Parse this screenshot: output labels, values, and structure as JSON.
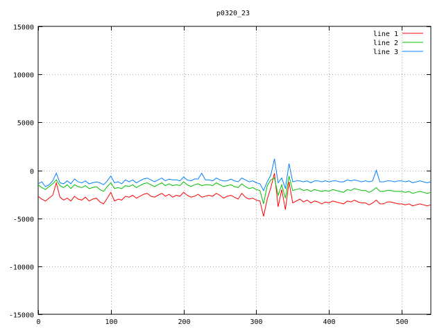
{
  "chart_data": {
    "type": "line",
    "title": "p0320_23",
    "xlabel": "",
    "ylabel": "",
    "xlim": [
      0,
      540
    ],
    "ylim": [
      -15000,
      15000
    ],
    "xticks": [
      0,
      100,
      200,
      300,
      400,
      500
    ],
    "yticks": [
      -15000,
      -10000,
      -5000,
      0,
      5000,
      10000,
      15000
    ],
    "grid": true,
    "legend": "top-right",
    "series": [
      {
        "name": "line 1",
        "color": "#ff0000",
        "x": [
          0,
          5,
          10,
          15,
          20,
          25,
          30,
          35,
          40,
          45,
          50,
          55,
          60,
          65,
          70,
          75,
          80,
          85,
          90,
          95,
          100,
          105,
          110,
          115,
          120,
          125,
          130,
          135,
          140,
          145,
          150,
          155,
          160,
          165,
          170,
          175,
          180,
          185,
          190,
          195,
          200,
          205,
          210,
          215,
          220,
          225,
          230,
          235,
          240,
          245,
          250,
          255,
          260,
          265,
          270,
          275,
          280,
          285,
          290,
          295,
          300,
          305,
          310,
          315,
          320,
          325,
          330,
          335,
          340,
          345,
          350,
          355,
          360,
          365,
          370,
          375,
          380,
          385,
          390,
          395,
          400,
          405,
          410,
          415,
          420,
          425,
          430,
          435,
          440,
          445,
          450,
          455,
          460,
          465,
          470,
          475,
          480,
          485,
          490,
          495,
          500,
          505,
          510,
          515,
          520,
          525,
          530,
          535,
          540
        ],
        "y": [
          -2700,
          -3000,
          -3200,
          -2900,
          -2600,
          -1300,
          -2800,
          -3100,
          -2900,
          -3200,
          -2700,
          -3000,
          -3100,
          -2800,
          -3200,
          -3000,
          -2900,
          -3300,
          -3500,
          -2900,
          -2300,
          -3200,
          -3000,
          -3100,
          -2700,
          -2800,
          -2600,
          -2900,
          -2700,
          -2500,
          -2400,
          -2700,
          -2800,
          -2600,
          -2400,
          -2700,
          -2500,
          -2800,
          -2600,
          -2700,
          -2300,
          -2600,
          -2800,
          -2700,
          -2500,
          -2800,
          -2700,
          -2600,
          -2700,
          -2400,
          -2600,
          -2900,
          -2700,
          -2600,
          -2800,
          -3000,
          -2400,
          -2800,
          -3000,
          -2900,
          -3100,
          -3200,
          -4800,
          -3000,
          -1800,
          -300,
          -3800,
          -2000,
          -4100,
          -1200,
          -3400,
          -3200,
          -3000,
          -3300,
          -3100,
          -3400,
          -3200,
          -3300,
          -3500,
          -3300,
          -3400,
          -3200,
          -3300,
          -3400,
          -3500,
          -3200,
          -3300,
          -3100,
          -3300,
          -3400,
          -3400,
          -3600,
          -3400,
          -3100,
          -3500,
          -3500,
          -3300,
          -3300,
          -3400,
          -3500,
          -3500,
          -3600,
          -3500,
          -3700,
          -3600,
          -3500,
          -3600,
          -3700,
          -3600
        ]
      },
      {
        "name": "line 2",
        "color": "#00c000",
        "x": [
          0,
          5,
          10,
          15,
          20,
          25,
          30,
          35,
          40,
          45,
          50,
          55,
          60,
          65,
          70,
          75,
          80,
          85,
          90,
          95,
          100,
          105,
          110,
          115,
          120,
          125,
          130,
          135,
          140,
          145,
          150,
          155,
          160,
          165,
          170,
          175,
          180,
          185,
          190,
          195,
          200,
          205,
          210,
          215,
          220,
          225,
          230,
          235,
          240,
          245,
          250,
          255,
          260,
          265,
          270,
          275,
          280,
          285,
          290,
          295,
          300,
          305,
          310,
          315,
          320,
          325,
          330,
          335,
          340,
          345,
          350,
          355,
          360,
          365,
          370,
          375,
          380,
          385,
          390,
          395,
          400,
          405,
          410,
          415,
          420,
          425,
          430,
          435,
          440,
          445,
          450,
          455,
          460,
          465,
          470,
          475,
          480,
          485,
          490,
          495,
          500,
          505,
          510,
          515,
          520,
          525,
          530,
          535,
          540
        ],
        "y": [
          -1500,
          -1800,
          -2000,
          -1700,
          -1400,
          -1000,
          -1600,
          -1800,
          -1500,
          -1900,
          -1500,
          -1700,
          -1800,
          -1600,
          -1900,
          -1800,
          -1700,
          -2000,
          -2200,
          -1700,
          -1300,
          -1900,
          -1800,
          -1900,
          -1600,
          -1700,
          -1500,
          -1800,
          -1600,
          -1400,
          -1300,
          -1500,
          -1700,
          -1500,
          -1300,
          -1600,
          -1400,
          -1600,
          -1500,
          -1600,
          -1200,
          -1500,
          -1700,
          -1500,
          -1400,
          -1600,
          -1500,
          -1500,
          -1600,
          -1300,
          -1500,
          -1700,
          -1600,
          -1500,
          -1700,
          -1800,
          -1400,
          -1700,
          -1900,
          -1800,
          -2000,
          -2100,
          -3500,
          -1600,
          -1000,
          -800,
          -2600,
          -1500,
          -2900,
          -600,
          -2100,
          -2000,
          -1900,
          -2100,
          -2000,
          -2200,
          -2000,
          -2100,
          -2200,
          -2100,
          -2200,
          -2000,
          -2100,
          -2200,
          -2300,
          -2000,
          -2100,
          -1900,
          -2000,
          -2100,
          -2100,
          -2300,
          -2100,
          -1800,
          -2200,
          -2200,
          -2100,
          -2100,
          -2200,
          -2200,
          -2200,
          -2300,
          -2200,
          -2400,
          -2300,
          -2200,
          -2300,
          -2400,
          -2300
        ]
      },
      {
        "name": "line 3",
        "color": "#0080ff",
        "x": [
          0,
          5,
          10,
          15,
          20,
          25,
          30,
          35,
          40,
          45,
          50,
          55,
          60,
          65,
          70,
          75,
          80,
          85,
          90,
          95,
          100,
          105,
          110,
          115,
          120,
          125,
          130,
          135,
          140,
          145,
          150,
          155,
          160,
          165,
          170,
          175,
          180,
          185,
          190,
          195,
          200,
          205,
          210,
          215,
          220,
          225,
          230,
          235,
          240,
          245,
          250,
          255,
          260,
          265,
          270,
          275,
          280,
          285,
          290,
          295,
          300,
          305,
          310,
          315,
          320,
          325,
          330,
          335,
          340,
          345,
          350,
          355,
          360,
          365,
          370,
          375,
          380,
          385,
          390,
          395,
          400,
          405,
          410,
          415,
          420,
          425,
          430,
          435,
          440,
          445,
          450,
          455,
          460,
          465,
          470,
          475,
          480,
          485,
          490,
          495,
          500,
          505,
          510,
          515,
          520,
          525,
          530,
          535,
          540
        ],
        "y": [
          -1400,
          -1200,
          -1700,
          -1500,
          -1100,
          -300,
          -1300,
          -1400,
          -1100,
          -1400,
          -900,
          -1200,
          -1300,
          -1100,
          -1400,
          -1300,
          -1200,
          -1300,
          -1500,
          -1100,
          -600,
          -1300,
          -1200,
          -1400,
          -1000,
          -1200,
          -1000,
          -1300,
          -1100,
          -900,
          -800,
          -1000,
          -1200,
          -1000,
          -800,
          -1100,
          -900,
          -1000,
          -1000,
          -1100,
          -700,
          -1000,
          -1100,
          -900,
          -900,
          -300,
          -1000,
          -1000,
          -1100,
          -800,
          -1000,
          -1100,
          -1100,
          -900,
          -1100,
          -1200,
          -800,
          -1000,
          -1200,
          -1100,
          -1300,
          -1400,
          -2100,
          -1200,
          -500,
          1200,
          -1300,
          -800,
          -1900,
          700,
          -1200,
          -1100,
          -1100,
          -1200,
          -1100,
          -1300,
          -1100,
          -1100,
          -1200,
          -1100,
          -1200,
          -1100,
          -1100,
          -1200,
          -1200,
          -1000,
          -1100,
          -1000,
          -1100,
          -1200,
          -1100,
          -1200,
          -1100,
          0,
          -1200,
          -1200,
          -1100,
          -1100,
          -1200,
          -1100,
          -1100,
          -1200,
          -1100,
          -1300,
          -1200,
          -1100,
          -1200,
          -1300,
          -1200
        ]
      }
    ]
  }
}
